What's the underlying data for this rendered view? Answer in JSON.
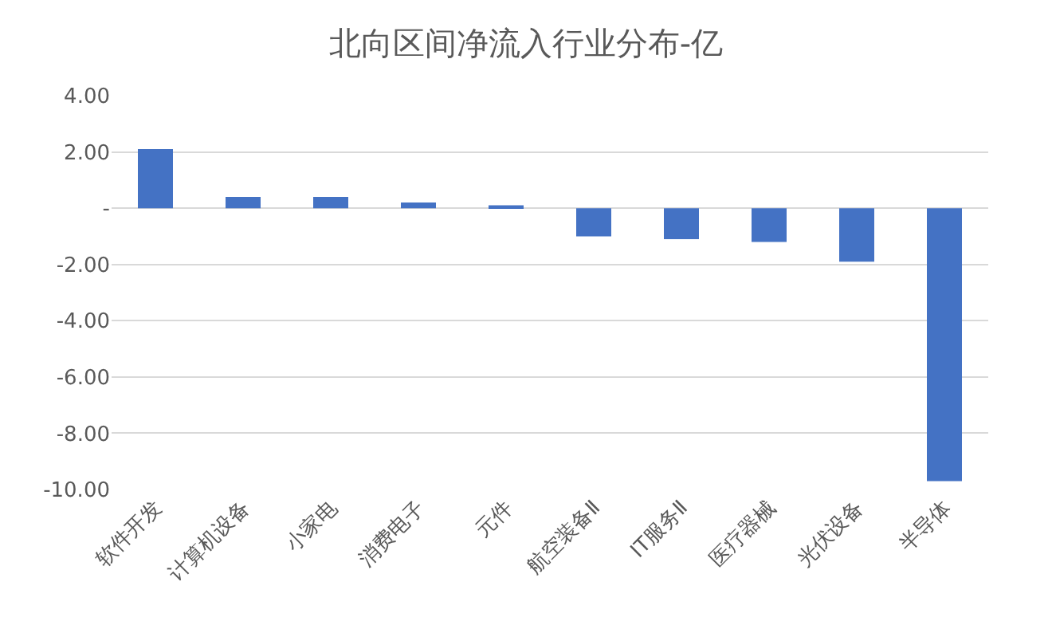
{
  "chart_data": {
    "type": "bar",
    "title": "北向区间净流入行业分布-亿",
    "categories": [
      "软件开发",
      "计算机设备",
      "小家电",
      "消费电子",
      "元件",
      "航空装备Ⅱ",
      "IT服务Ⅱ",
      "医疗器械",
      "光伏设备",
      "半导体"
    ],
    "values": [
      2.1,
      0.4,
      0.4,
      0.2,
      0.1,
      -1.0,
      -1.1,
      -1.2,
      -1.9,
      -9.7
    ],
    "color": "#4472c4",
    "ylim": [
      -10,
      4
    ],
    "yticks": [
      {
        "value": 4,
        "label": "4.00"
      },
      {
        "value": 2,
        "label": "2.00"
      },
      {
        "value": 0,
        "label": "-"
      },
      {
        "value": -2,
        "label": "-2.00"
      },
      {
        "value": -4,
        "label": "-4.00"
      },
      {
        "value": -6,
        "label": "-6.00"
      },
      {
        "value": -8,
        "label": "-8.00"
      },
      {
        "value": -10,
        "label": "-10.00"
      }
    ],
    "grid": "y"
  }
}
